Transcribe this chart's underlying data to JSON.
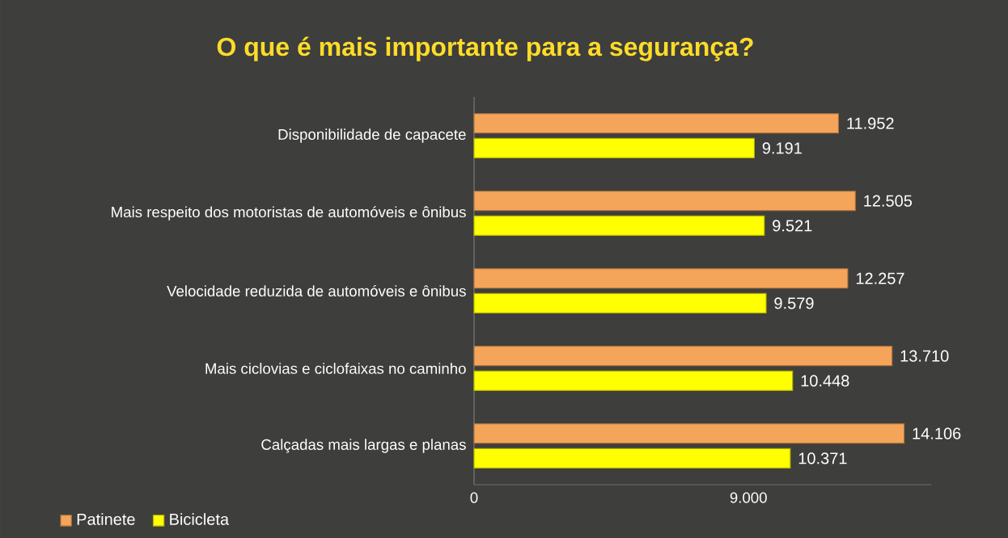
{
  "chart_data": {
    "type": "bar",
    "orientation": "horizontal",
    "title": "O que é mais importante para a segurança?",
    "categories": [
      "Disponibilidade de capacete",
      "Mais respeito dos motoristas de automóveis e ônibus",
      "Velocidade reduzida de automóveis e ônibus",
      "Mais ciclovias e ciclofaixas no caminho",
      "Calçadas mais largas e planas"
    ],
    "series": [
      {
        "name": "Patinete",
        "color": "#f5a55a",
        "values": [
          11952,
          12505,
          12257,
          13710,
          14106
        ],
        "value_labels": [
          "11.952",
          "12.505",
          "12.257",
          "13.710",
          "14.106"
        ]
      },
      {
        "name": "Bicicleta",
        "color": "#ffff00",
        "values": [
          9191,
          9521,
          9579,
          10448,
          10371
        ],
        "value_labels": [
          "9.191",
          "9.521",
          "9.579",
          "10.448",
          "10.371"
        ]
      }
    ],
    "xlim": [
      0,
      15000
    ],
    "xticks": [
      0,
      {
        "value": 9000,
        "label": "9.000"
      }
    ],
    "legend": "bottom left"
  }
}
